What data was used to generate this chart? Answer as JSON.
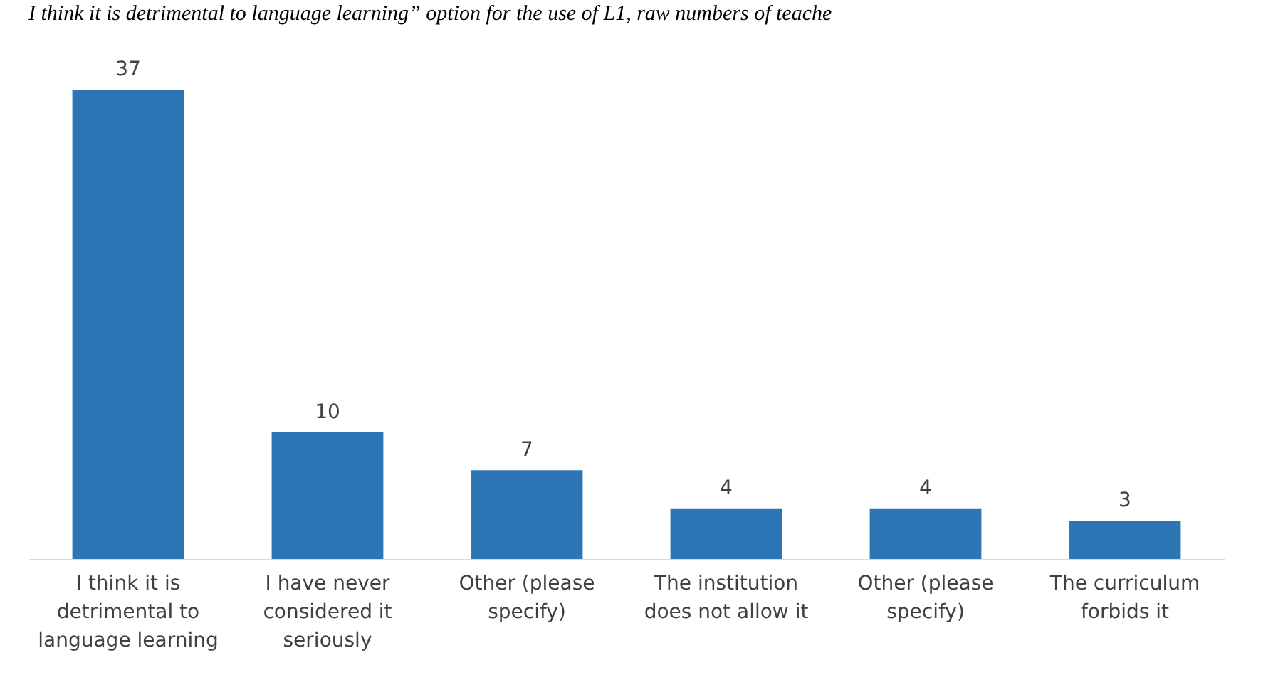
{
  "chart_data": {
    "type": "bar",
    "title": "I think it is detrimental to language learning” option for the use of L1, raw numbers of teache",
    "categories": [
      "I think it is detrimental to language learning",
      "I have never considered it seriously",
      "Other (please specify)",
      "The institution does not allow it",
      "Other (please specify)",
      "The curriculum forbids it"
    ],
    "values": [
      37,
      10,
      7,
      4,
      4,
      3
    ],
    "color": "#2e75b6",
    "data_labels": true,
    "tick_labels": "x"
  }
}
